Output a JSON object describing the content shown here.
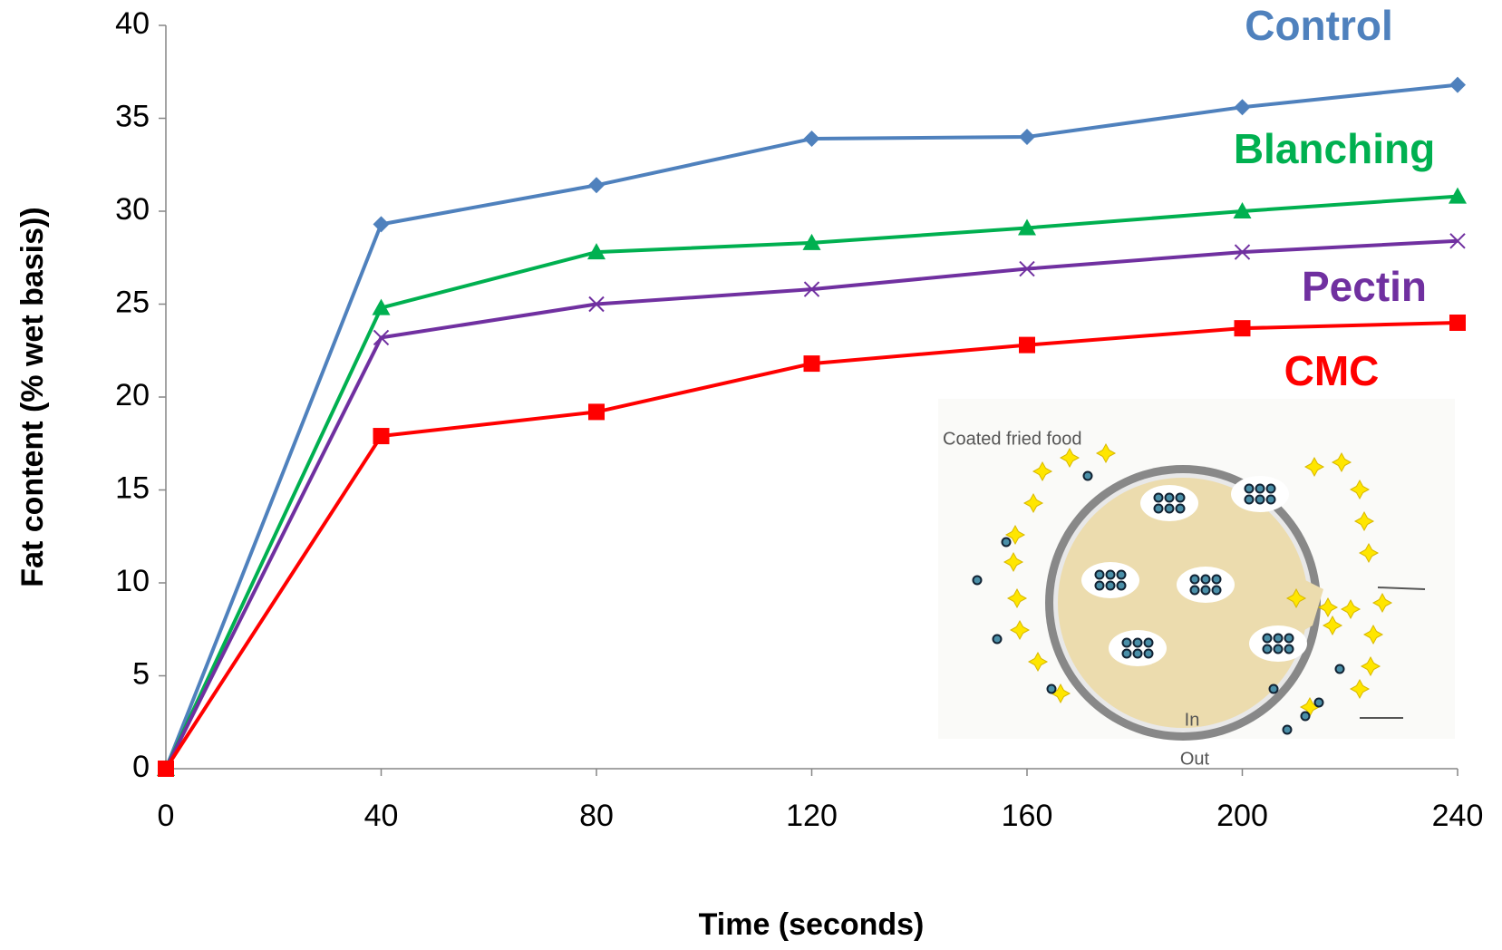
{
  "chart_data": {
    "type": "line",
    "xlabel": "Time (seconds)",
    "ylabel": "Fat content (% wet basis))",
    "x": [
      0,
      40,
      80,
      120,
      160,
      200,
      240
    ],
    "series": [
      {
        "name": "Control",
        "color": "#4f81bd",
        "marker": "diamond",
        "values": [
          0,
          29.3,
          31.4,
          33.9,
          34.0,
          35.6,
          36.8
        ]
      },
      {
        "name": "Blanching",
        "color": "#00b050",
        "marker": "triangle",
        "values": [
          0,
          24.8,
          27.8,
          28.3,
          29.1,
          30.0,
          30.8
        ]
      },
      {
        "name": "Pectin",
        "color": "#7030a0",
        "marker": "x",
        "values": [
          0,
          23.2,
          25.0,
          25.8,
          26.9,
          27.8,
          28.4
        ]
      },
      {
        "name": "CMC",
        "color": "#ff0000",
        "marker": "square",
        "values": [
          0,
          17.9,
          19.2,
          21.8,
          22.8,
          23.7,
          24.0
        ]
      }
    ],
    "xlim": [
      0,
      240
    ],
    "xticks": [
      0,
      40,
      80,
      120,
      160,
      200,
      240
    ],
    "ylim": [
      0,
      40
    ],
    "yticks": [
      0,
      5,
      10,
      15,
      20,
      25,
      30,
      35,
      40
    ],
    "inset": {
      "labels": [
        "Coated fried food",
        "In",
        "Out"
      ]
    }
  }
}
